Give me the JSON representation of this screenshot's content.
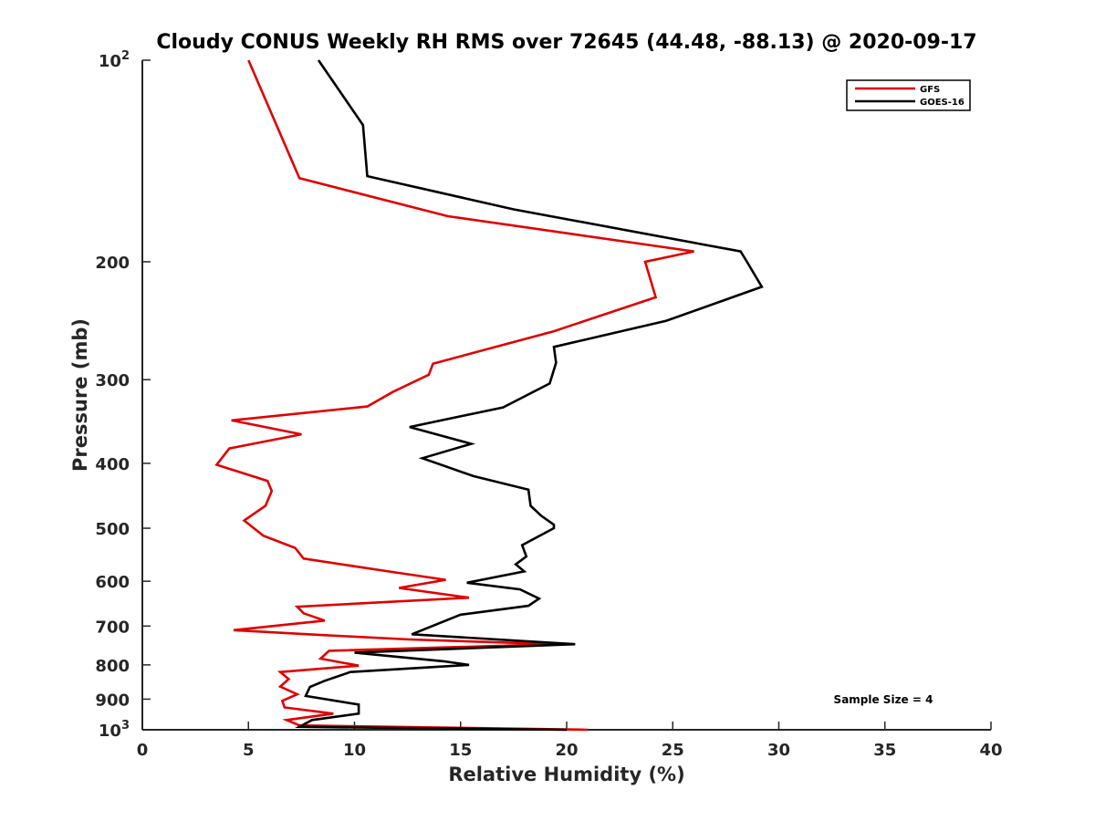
{
  "chart_data": {
    "type": "line",
    "title": "Cloudy CONUS Weekly RH RMS over 72645 (44.48, -88.13) @ 2020-09-17",
    "xlabel": "Relative Humidity (%)",
    "ylabel": "Pressure (mb)",
    "xlim": [
      0,
      40
    ],
    "ylim": [
      100,
      1000
    ],
    "y_scale": "log",
    "y_reversed": true,
    "grid": false,
    "legend_position": "top-right",
    "x_ticks": [
      0,
      5,
      10,
      15,
      20,
      25,
      30,
      35,
      40
    ],
    "y_ticks": [
      {
        "value": 100,
        "base": "10",
        "exp": "2"
      },
      {
        "value": 200,
        "label": "200"
      },
      {
        "value": 300,
        "label": "300"
      },
      {
        "value": 400,
        "label": "400"
      },
      {
        "value": 500,
        "label": "500"
      },
      {
        "value": 600,
        "label": "600"
      },
      {
        "value": 700,
        "label": "700"
      },
      {
        "value": 800,
        "label": "800"
      },
      {
        "value": 900,
        "label": "900"
      },
      {
        "value": 1000,
        "base": "10",
        "exp": "3"
      }
    ],
    "annotation": "Sample Size = 4",
    "series": [
      {
        "name": "GFS",
        "color": "#e00000",
        "points": [
          [
            5.0,
            100
          ],
          [
            7.4,
            150
          ],
          [
            14.4,
            171
          ],
          [
            26.0,
            193
          ],
          [
            23.7,
            200
          ],
          [
            24.2,
            226
          ],
          [
            19.4,
            254
          ],
          [
            13.7,
            284
          ],
          [
            13.5,
            295
          ],
          [
            11.8,
            313
          ],
          [
            10.6,
            329
          ],
          [
            4.2,
            345
          ],
          [
            7.5,
            362
          ],
          [
            4.1,
            380
          ],
          [
            3.5,
            402
          ],
          [
            5.9,
            425
          ],
          [
            6.1,
            440
          ],
          [
            5.8,
            463
          ],
          [
            4.8,
            487
          ],
          [
            5.7,
            513
          ],
          [
            7.2,
            535
          ],
          [
            7.6,
            555
          ],
          [
            11.6,
            580
          ],
          [
            14.3,
            597
          ],
          [
            12.1,
            614
          ],
          [
            15.4,
            635
          ],
          [
            7.3,
            655
          ],
          [
            7.6,
            670
          ],
          [
            8.6,
            687
          ],
          [
            4.3,
            710
          ],
          [
            8.5,
            722
          ],
          [
            12.6,
            733
          ],
          [
            19.5,
            745
          ],
          [
            8.8,
            762
          ],
          [
            8.4,
            783
          ],
          [
            10.2,
            802
          ],
          [
            6.5,
            820
          ],
          [
            6.9,
            840
          ],
          [
            6.5,
            862
          ],
          [
            7.3,
            885
          ],
          [
            6.6,
            905
          ],
          [
            6.7,
            926
          ],
          [
            9.0,
            946
          ],
          [
            6.8,
            967
          ],
          [
            7.4,
            985
          ],
          [
            19.5,
            998
          ],
          [
            21.0,
            1000
          ]
        ]
      },
      {
        "name": "GOES-16",
        "color": "#000000",
        "points": [
          [
            8.3,
            100
          ],
          [
            10.4,
            125
          ],
          [
            10.6,
            149
          ],
          [
            17.5,
            167
          ],
          [
            28.2,
            193
          ],
          [
            28.5,
            200
          ],
          [
            29.2,
            218
          ],
          [
            24.7,
            245
          ],
          [
            19.4,
            268
          ],
          [
            19.5,
            283
          ],
          [
            19.2,
            304
          ],
          [
            17.0,
            330
          ],
          [
            12.6,
            353
          ],
          [
            15.5,
            374
          ],
          [
            13.2,
            393
          ],
          [
            15.6,
            418
          ],
          [
            18.2,
            438
          ],
          [
            18.3,
            463
          ],
          [
            18.8,
            479
          ],
          [
            19.4,
            494
          ],
          [
            19.4,
            500
          ],
          [
            17.9,
            530
          ],
          [
            18.1,
            551
          ],
          [
            17.6,
            566
          ],
          [
            18.0,
            580
          ],
          [
            15.3,
            603
          ],
          [
            17.8,
            617
          ],
          [
            18.7,
            637
          ],
          [
            18.2,
            653
          ],
          [
            15.0,
            673
          ],
          [
            12.7,
            720
          ],
          [
            20.4,
            745
          ],
          [
            10.0,
            767
          ],
          [
            14.2,
            790
          ],
          [
            15.4,
            800
          ],
          [
            9.8,
            820
          ],
          [
            8.6,
            845
          ],
          [
            7.9,
            863
          ],
          [
            7.7,
            890
          ],
          [
            10.2,
            917
          ],
          [
            10.2,
            946
          ],
          [
            8.0,
            967
          ],
          [
            7.4,
            990
          ],
          [
            20.0,
            1000
          ]
        ]
      }
    ]
  }
}
